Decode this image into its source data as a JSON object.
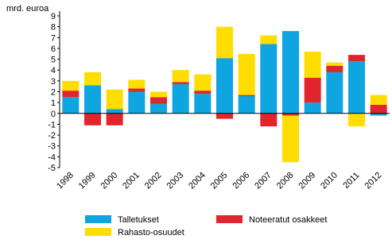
{
  "chart_data": {
    "type": "bar",
    "stacked": true,
    "y_label": "mrd. euroa",
    "categories": [
      "1998",
      "1999",
      "2000",
      "2001",
      "2002",
      "2003",
      "2004",
      "2005",
      "2006",
      "2007",
      "2008",
      "2009",
      "2010",
      "2011",
      "2012"
    ],
    "series": [
      {
        "name": "Talletukset",
        "color": "#0ea5e0",
        "values": [
          1.5,
          2.6,
          0.4,
          2.0,
          0.9,
          2.7,
          1.8,
          5.1,
          1.6,
          6.4,
          7.6,
          1.0,
          3.8,
          4.8,
          -0.2
        ]
      },
      {
        "name": "Noteeratut osakkeet",
        "color": "#e0262c",
        "values": [
          0.6,
          -1.1,
          -1.1,
          0.3,
          0.6,
          0.2,
          0.3,
          -0.5,
          0.1,
          -1.2,
          -0.2,
          2.3,
          0.6,
          0.6,
          0.8
        ]
      },
      {
        "name": "Rahasto-osuudet",
        "color": "#ffdd00",
        "values": [
          0.9,
          1.2,
          1.8,
          0.8,
          0.5,
          1.1,
          1.5,
          2.9,
          3.8,
          0.8,
          -4.3,
          2.4,
          0.3,
          -1.2,
          0.9
        ]
      }
    ],
    "ylim": [
      -5,
      9
    ],
    "yticks": [
      -5,
      -4,
      -3,
      -2,
      -1,
      0,
      1,
      2,
      3,
      4,
      5,
      6,
      7,
      8,
      9
    ]
  }
}
